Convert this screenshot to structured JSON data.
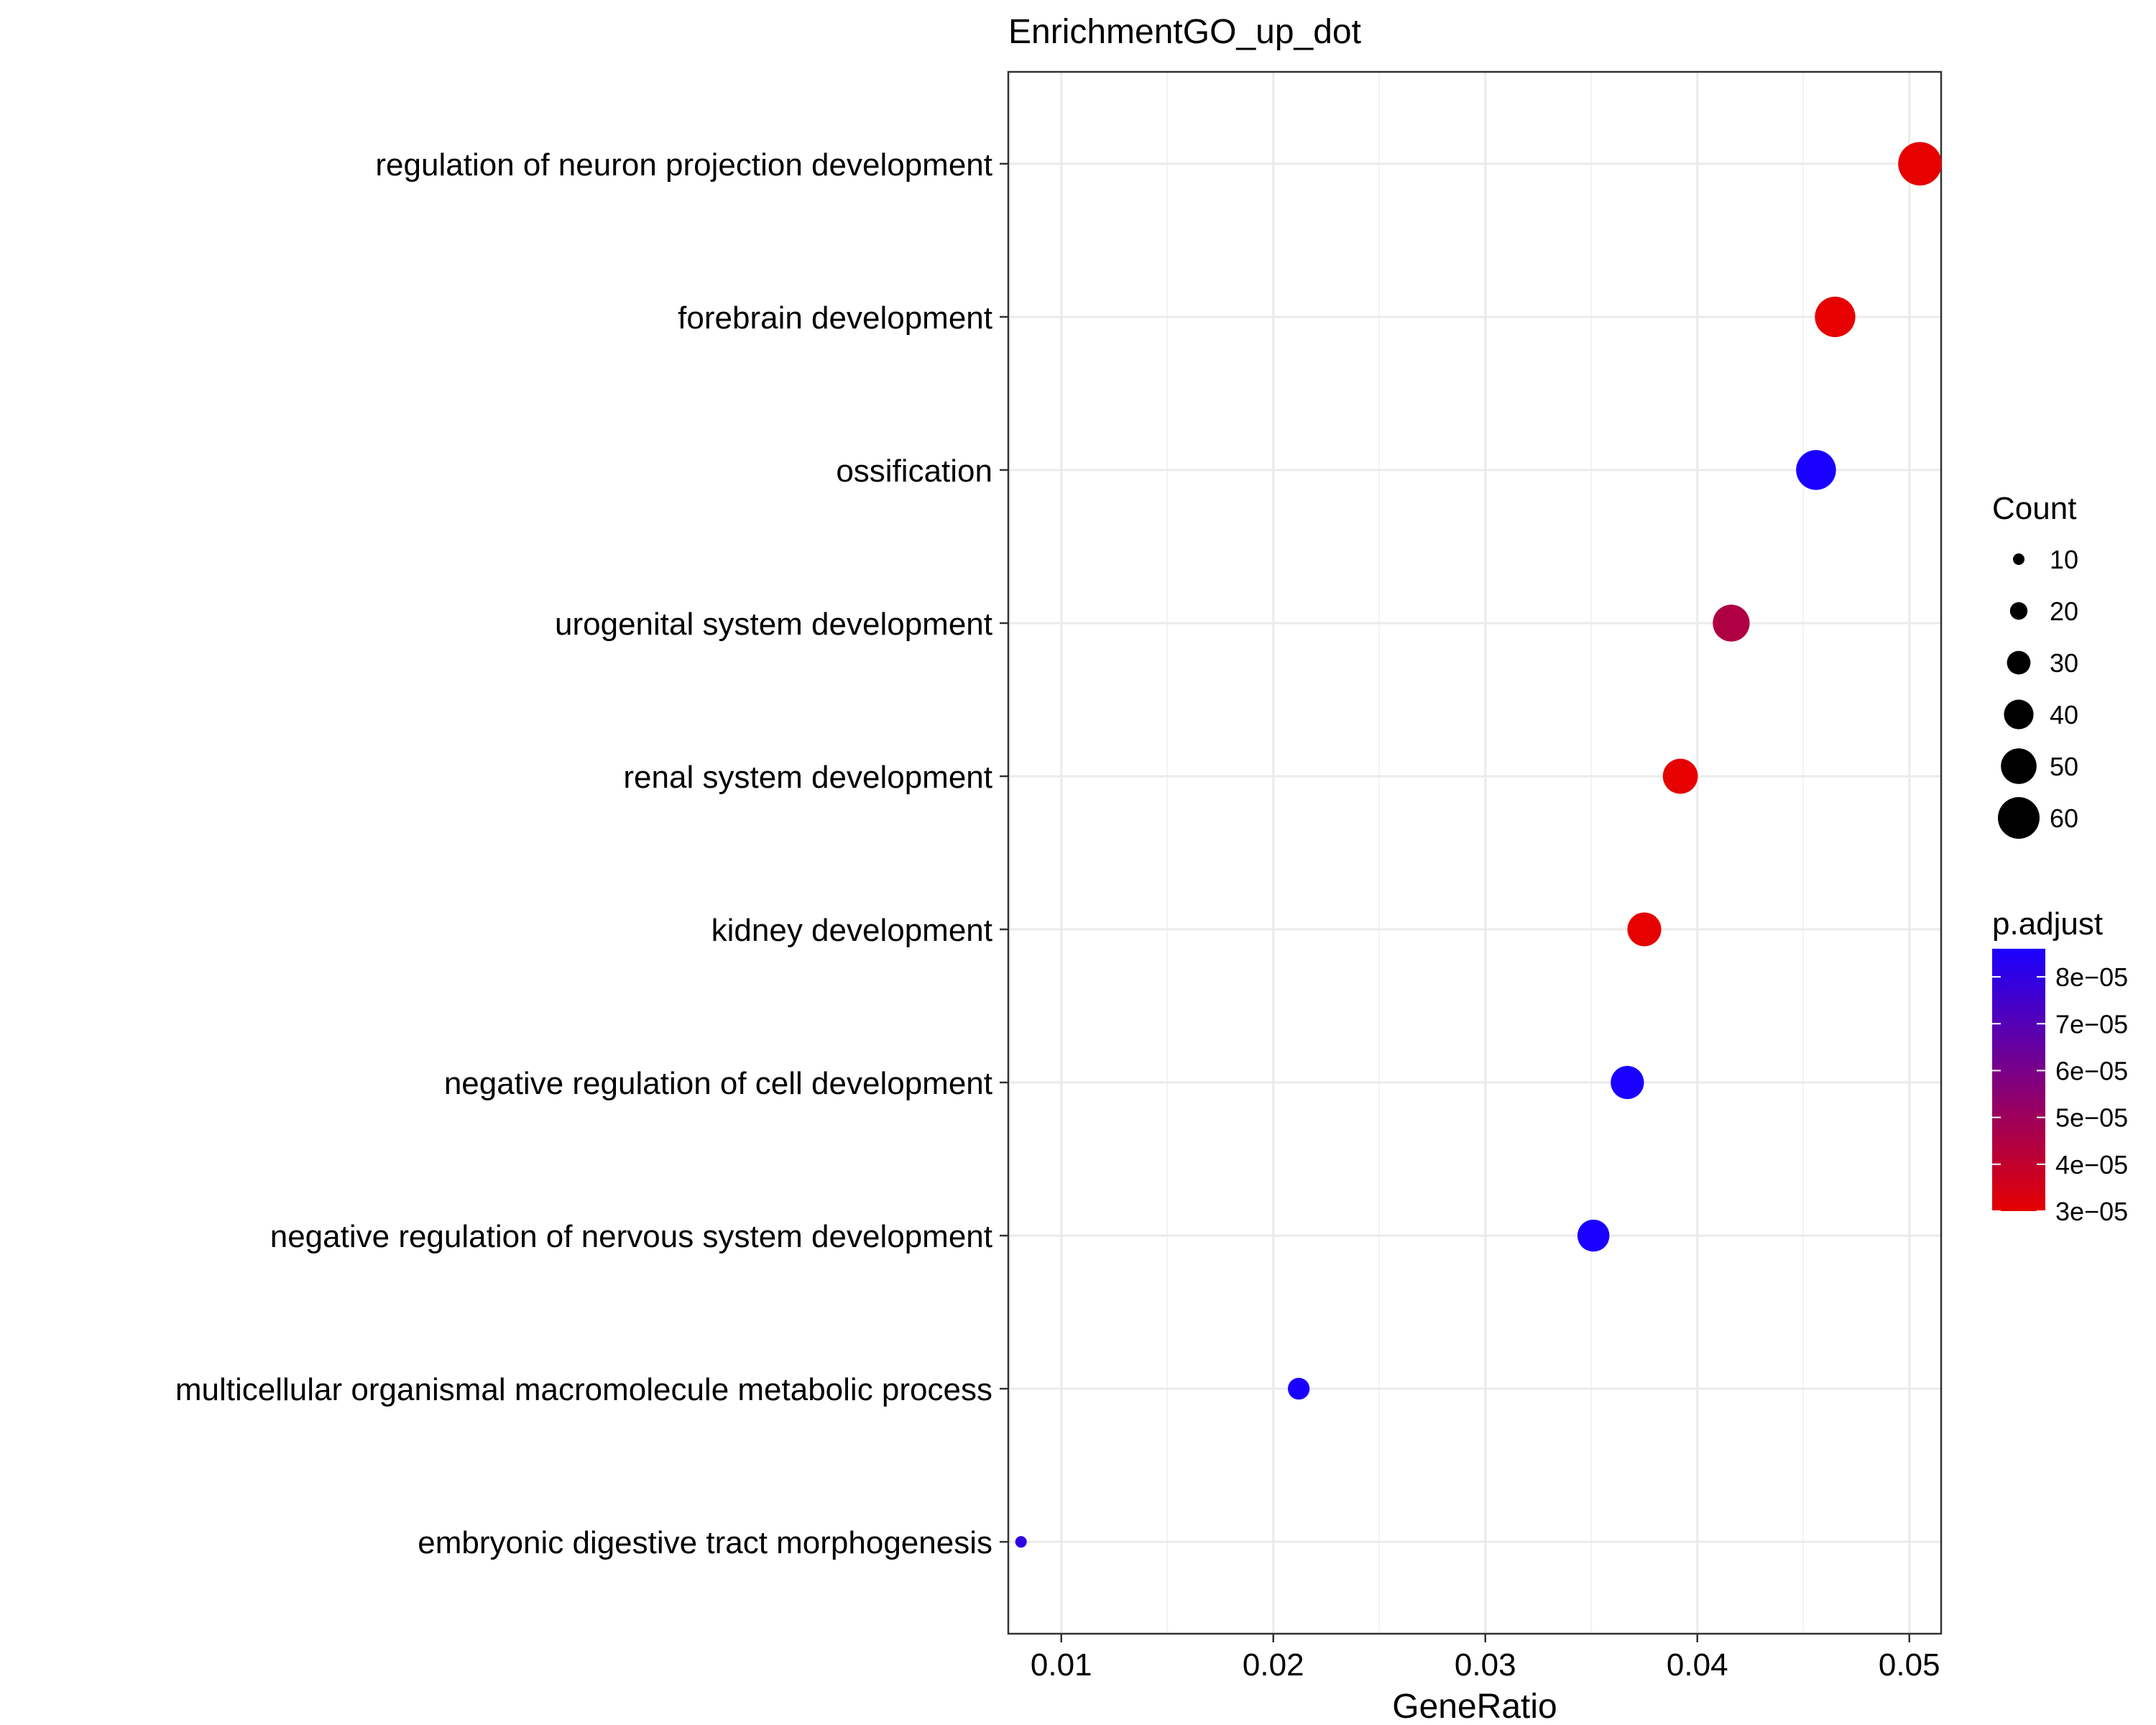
{
  "chart_data": {
    "type": "scatter",
    "title": "EnrichmentGO_up_dot",
    "xlabel": "GeneRatio",
    "ylabel": "",
    "xlim": [
      0.0075,
      0.0515
    ],
    "grid": true,
    "x_ticks": [
      {
        "value": 0.01,
        "label": "0.01"
      },
      {
        "value": 0.02,
        "label": "0.02"
      },
      {
        "value": 0.03,
        "label": "0.03"
      },
      {
        "value": 0.04,
        "label": "0.04"
      },
      {
        "value": 0.05,
        "label": "0.05"
      }
    ],
    "categories": [
      "regulation of neuron projection development",
      "forebrain development",
      "ossification",
      "urogenital system development",
      "renal system development",
      "kidney development",
      "negative regulation of cell development",
      "negative regulation of nervous system development",
      "multicellular organismal macromolecule metabolic process",
      "embryonic digestive tract morphogenesis"
    ],
    "points": [
      {
        "term": "regulation of neuron projection development",
        "gene_ratio": 0.0505,
        "count": 63,
        "p_adjust": 3e-05
      },
      {
        "term": "forebrain development",
        "gene_ratio": 0.0465,
        "count": 58,
        "p_adjust": 3e-05
      },
      {
        "term": "ossification",
        "gene_ratio": 0.0456,
        "count": 57,
        "p_adjust": 8.6e-05
      },
      {
        "term": "urogenital system development",
        "gene_ratio": 0.0416,
        "count": 52,
        "p_adjust": 4.5e-05
      },
      {
        "term": "renal system development",
        "gene_ratio": 0.0392,
        "count": 49,
        "p_adjust": 3e-05
      },
      {
        "term": "kidney development",
        "gene_ratio": 0.0375,
        "count": 47,
        "p_adjust": 3e-05
      },
      {
        "term": "negative regulation of cell development",
        "gene_ratio": 0.0367,
        "count": 46,
        "p_adjust": 8.6e-05
      },
      {
        "term": "negative regulation of nervous system development",
        "gene_ratio": 0.0351,
        "count": 44,
        "p_adjust": 8.6e-05
      },
      {
        "term": "multicellular organismal macromolecule metabolic process",
        "gene_ratio": 0.0212,
        "count": 27,
        "p_adjust": 8.6e-05
      },
      {
        "term": "embryonic digestive tract morphogenesis",
        "gene_ratio": 0.0081,
        "count": 10,
        "p_adjust": 8e-05
      }
    ],
    "size_legend": {
      "title": "Count",
      "entries": [
        {
          "value": 10,
          "label": "10"
        },
        {
          "value": 20,
          "label": "20"
        },
        {
          "value": 30,
          "label": "30"
        },
        {
          "value": 40,
          "label": "40"
        },
        {
          "value": 50,
          "label": "50"
        },
        {
          "value": 60,
          "label": "60"
        }
      ]
    },
    "color_legend": {
      "title": "p.adjust",
      "range": [
        3e-05,
        8.6e-05
      ],
      "low_color": "#e60000",
      "high_color": "#1a00ff",
      "ticks": [
        {
          "value": 8e-05,
          "label": "8e−05"
        },
        {
          "value": 7e-05,
          "label": "7e−05"
        },
        {
          "value": 6e-05,
          "label": "6e−05"
        },
        {
          "value": 5e-05,
          "label": "5e−05"
        },
        {
          "value": 4e-05,
          "label": "4e−05"
        },
        {
          "value": 3e-05,
          "label": "3e−05"
        }
      ]
    },
    "legend_position": "right"
  }
}
